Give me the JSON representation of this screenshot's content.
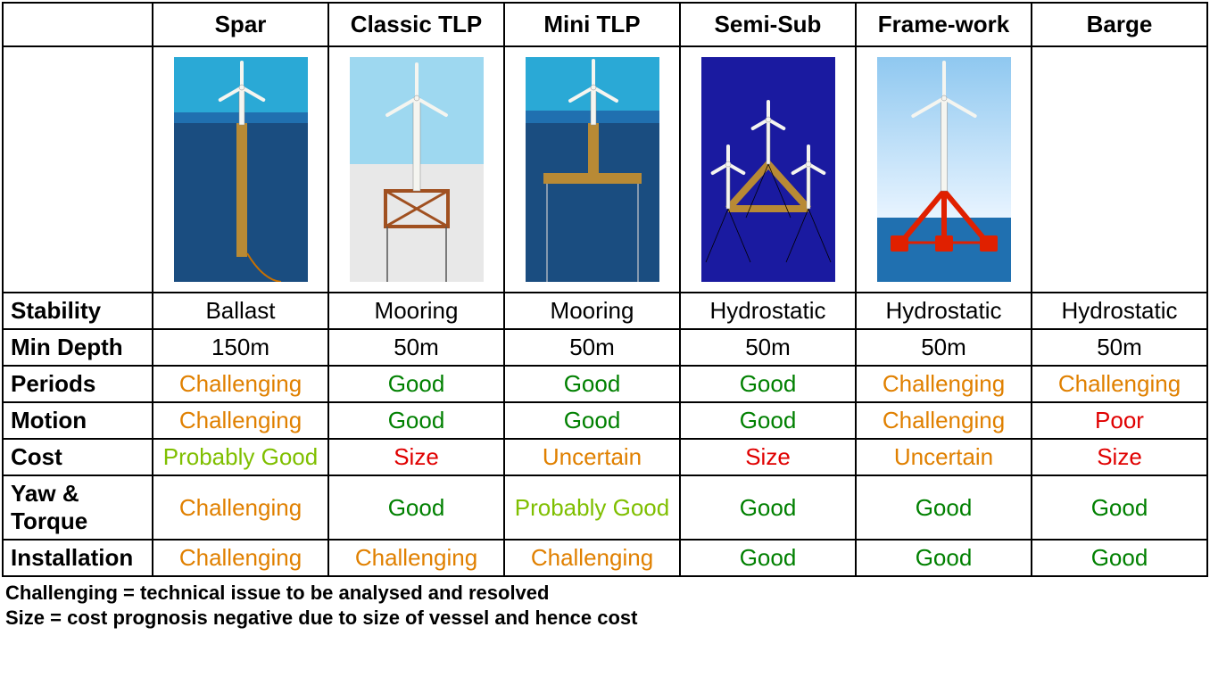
{
  "colors": {
    "black": "#000000",
    "good_green": "#008000",
    "prob_green": "#7fbf00",
    "challenging": "#e08000",
    "uncertain": "#e08000",
    "size_red": "#e00000",
    "poor_red": "#e00000"
  },
  "illustrations": {
    "sky": "#2aa9d6",
    "sky_light": "#9ed8f0",
    "sky_blue": "#8fc8f0",
    "water_deep": "#1a4d80",
    "water_mid": "#2070b0",
    "seabed": "#c8c8c8",
    "flat_blue": "#1a1aa0",
    "tower": "#f5f5f0",
    "structure_gold": "#b88a35",
    "framework_red": "#e02000",
    "framework_tlp": "#a05020"
  },
  "headers": [
    "",
    "Spar",
    "Classic TLP",
    "Mini TLP",
    "Semi-Sub",
    "Frame-work",
    "Barge"
  ],
  "rows": [
    {
      "label": "Stability",
      "cells": [
        {
          "text": "Ballast",
          "colorKey": "black"
        },
        {
          "text": "Mooring",
          "colorKey": "black"
        },
        {
          "text": "Mooring",
          "colorKey": "black"
        },
        {
          "text": "Hydrostatic",
          "colorKey": "black"
        },
        {
          "text": "Hydrostatic",
          "colorKey": "black"
        },
        {
          "text": "Hydrostatic",
          "colorKey": "black"
        }
      ]
    },
    {
      "label": "Min Depth",
      "cells": [
        {
          "text": "150m",
          "colorKey": "black"
        },
        {
          "text": "50m",
          "colorKey": "black"
        },
        {
          "text": "50m",
          "colorKey": "black"
        },
        {
          "text": "50m",
          "colorKey": "black"
        },
        {
          "text": "50m",
          "colorKey": "black"
        },
        {
          "text": "50m",
          "colorKey": "black"
        }
      ]
    },
    {
      "label": "Periods",
      "cells": [
        {
          "text": "Challenging",
          "colorKey": "challenging"
        },
        {
          "text": "Good",
          "colorKey": "good_green"
        },
        {
          "text": "Good",
          "colorKey": "good_green"
        },
        {
          "text": "Good",
          "colorKey": "good_green"
        },
        {
          "text": "Challenging",
          "colorKey": "challenging"
        },
        {
          "text": "Challenging",
          "colorKey": "challenging"
        }
      ]
    },
    {
      "label": "Motion",
      "cells": [
        {
          "text": "Challenging",
          "colorKey": "challenging"
        },
        {
          "text": "Good",
          "colorKey": "good_green"
        },
        {
          "text": "Good",
          "colorKey": "good_green"
        },
        {
          "text": "Good",
          "colorKey": "good_green"
        },
        {
          "text": "Challenging",
          "colorKey": "challenging"
        },
        {
          "text": "Poor",
          "colorKey": "poor_red"
        }
      ]
    },
    {
      "label": "Cost",
      "cells": [
        {
          "text": "Probably Good",
          "colorKey": "prob_green"
        },
        {
          "text": "Size",
          "colorKey": "size_red"
        },
        {
          "text": "Uncertain",
          "colorKey": "uncertain"
        },
        {
          "text": "Size",
          "colorKey": "size_red"
        },
        {
          "text": "Uncertain",
          "colorKey": "uncertain"
        },
        {
          "text": "Size",
          "colorKey": "size_red"
        }
      ]
    },
    {
      "label": "Yaw & Torque",
      "cells": [
        {
          "text": "Challenging",
          "colorKey": "challenging"
        },
        {
          "text": "Good",
          "colorKey": "good_green"
        },
        {
          "text": "Probably Good",
          "colorKey": "prob_green"
        },
        {
          "text": "Good",
          "colorKey": "good_green"
        },
        {
          "text": "Good",
          "colorKey": "good_green"
        },
        {
          "text": "Good",
          "colorKey": "good_green"
        }
      ]
    },
    {
      "label": "Installation",
      "cells": [
        {
          "text": "Challenging",
          "colorKey": "challenging"
        },
        {
          "text": "Challenging",
          "colorKey": "challenging"
        },
        {
          "text": "Challenging",
          "colorKey": "challenging"
        },
        {
          "text": "Good",
          "colorKey": "good_green"
        },
        {
          "text": "Good",
          "colorKey": "good_green"
        },
        {
          "text": "Good",
          "colorKey": "good_green"
        }
      ]
    }
  ],
  "footnotes": [
    "Challenging = technical issue to be analysed and resolved",
    "Size = cost prognosis negative due to size of vessel and hence cost"
  ]
}
